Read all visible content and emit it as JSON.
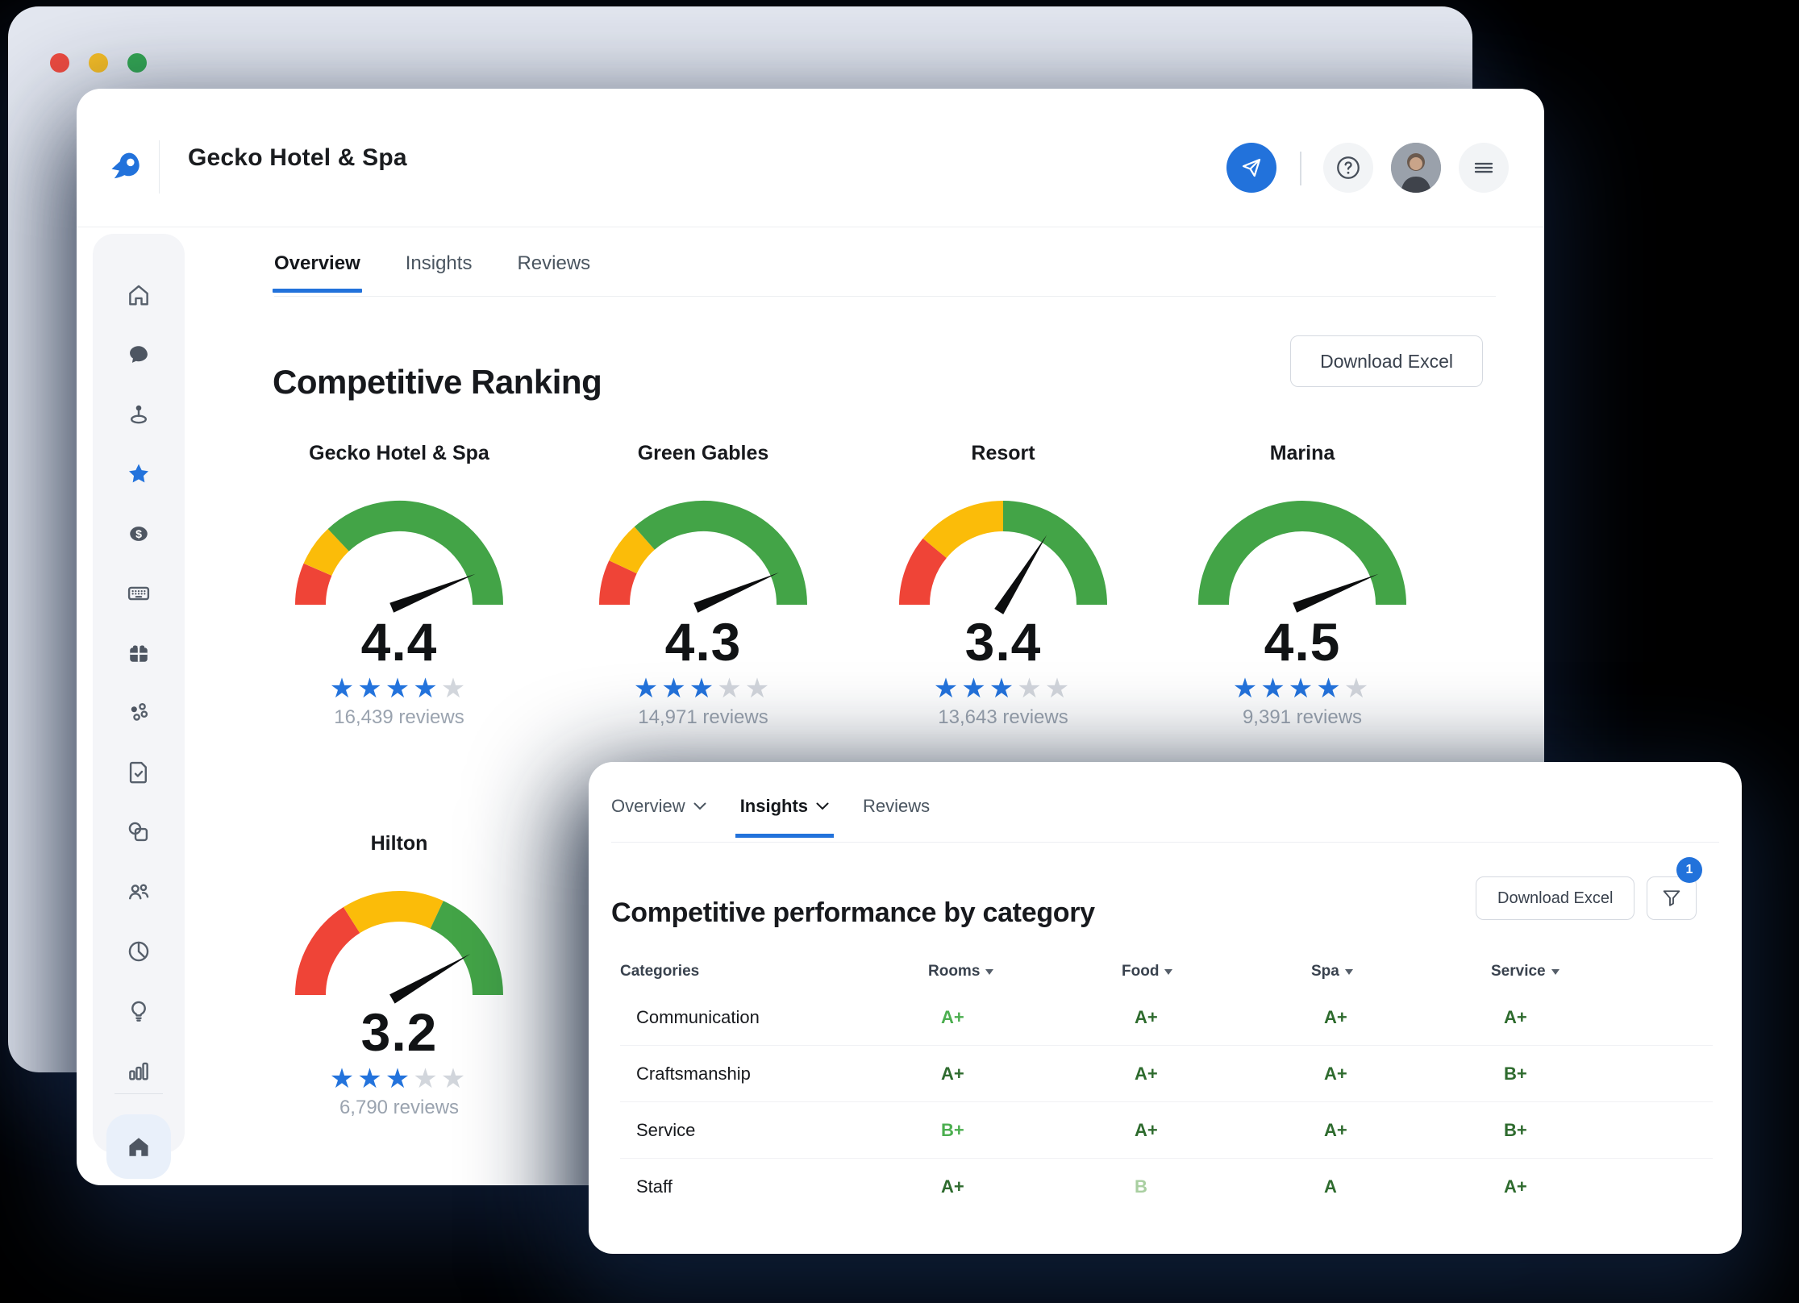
{
  "window": {
    "title": "Gecko Hotel & Spa",
    "traffic_lights": {
      "red": "#EE4B40",
      "yellow": "#F7BE25",
      "green": "#34A853"
    }
  },
  "main_tabs": [
    {
      "label": "Overview",
      "active": true
    },
    {
      "label": "Insights",
      "active": false
    },
    {
      "label": "Reviews",
      "active": false
    }
  ],
  "ranking": {
    "title": "Competitive Ranking",
    "download_button": "Download Excel",
    "gauges": [
      {
        "name": "Gecko Hotel & Spa",
        "value": "4.4",
        "stars": 4,
        "reviews": "16,439 reviews",
        "segments": {
          "red": 0.13,
          "yellow": 0.13,
          "green": 0.74
        },
        "needle_deg": 22
      },
      {
        "name": "Green Gables",
        "value": "4.3",
        "stars": 3,
        "reviews": "14,971 reviews",
        "segments": {
          "red": 0.14,
          "yellow": 0.13,
          "green": 0.73
        },
        "needle_deg": 23
      },
      {
        "name": "Resort",
        "value": "3.4",
        "stars": 3,
        "reviews": "13,643 reviews",
        "segments": {
          "red": 0.22,
          "yellow": 0.28,
          "green": 0.5
        },
        "needle_deg": 58
      },
      {
        "name": "Marina",
        "value": "4.5",
        "stars": 4,
        "reviews": "9,391 reviews",
        "segments": {
          "red": 0,
          "yellow": 0,
          "green": 1
        },
        "needle_deg": 22
      },
      {
        "name": "Hilton",
        "value": "3.2",
        "stars": 3,
        "reviews": "6,790 reviews",
        "segments": {
          "red": 0.32,
          "yellow": 0.32,
          "green": 0.36
        },
        "needle_deg": 30
      }
    ]
  },
  "panel": {
    "tabs": [
      {
        "label": "Overview",
        "chevron": true,
        "active": false
      },
      {
        "label": "Insights",
        "chevron": true,
        "active": true
      },
      {
        "label": "Reviews",
        "chevron": false,
        "active": false
      }
    ],
    "title": "Competitive performance by category",
    "download_button": "Download Excel",
    "filter_badge": "1",
    "table": {
      "columns": [
        "Categories",
        "Rooms",
        "Food",
        "Spa",
        "Service"
      ],
      "rows": [
        {
          "category": "Communication",
          "grades": [
            {
              "value": "A+",
              "tone": "bright"
            },
            {
              "value": "A+",
              "tone": "dark"
            },
            {
              "value": "A+",
              "tone": "dark"
            },
            {
              "value": "A+",
              "tone": "dark"
            }
          ]
        },
        {
          "category": "Craftsmanship",
          "grades": [
            {
              "value": "A+",
              "tone": "dark"
            },
            {
              "value": "A+",
              "tone": "dark"
            },
            {
              "value": "A+",
              "tone": "dark"
            },
            {
              "value": "B+",
              "tone": "dark"
            }
          ]
        },
        {
          "category": "Service",
          "grades": [
            {
              "value": "B+",
              "tone": "bright"
            },
            {
              "value": "A+",
              "tone": "dark"
            },
            {
              "value": "A+",
              "tone": "dark"
            },
            {
              "value": "B+",
              "tone": "dark"
            }
          ]
        },
        {
          "category": "Staff",
          "grades": [
            {
              "value": "A+",
              "tone": "dark"
            },
            {
              "value": "B",
              "tone": "pale"
            },
            {
              "value": "A",
              "tone": "dark"
            },
            {
              "value": "A+",
              "tone": "dark"
            }
          ]
        }
      ]
    }
  },
  "sidebar": {
    "items": [
      "home",
      "chat",
      "location-pin",
      "star",
      "dollar",
      "keyboard",
      "gift",
      "share",
      "document-check",
      "copy",
      "users",
      "pie-chart",
      "lightbulb",
      "bar-chart"
    ],
    "active_item": "star",
    "bottom_item": "home-filled"
  },
  "colors": {
    "accent_blue": "#2272DB",
    "gauge_red": "#EF4437",
    "gauge_yellow": "#FBBC09",
    "gauge_green": "#43A447",
    "star_filled": "#2373DC",
    "star_empty": "#D2D6DC",
    "grade_dark": "#2E6B2E",
    "grade_bright": "#4BAE4F",
    "grade_pale": "#A9CFA1"
  },
  "chart_data": [
    {
      "type": "gauge",
      "title": "Competitive Ranking",
      "categories": [
        "Gecko Hotel & Spa",
        "Green Gables",
        "Resort",
        "Marina",
        "Hilton"
      ],
      "values": [
        4.4,
        4.3,
        3.4,
        4.5,
        3.2
      ],
      "review_counts": [
        16439,
        14971,
        13643,
        9391,
        6790
      ],
      "star_ratings": [
        4,
        3,
        3,
        4,
        3
      ],
      "scale": [
        0,
        5
      ]
    },
    {
      "type": "table",
      "title": "Competitive performance by category",
      "columns": [
        "Categories",
        "Rooms",
        "Food",
        "Spa",
        "Service"
      ],
      "rows": [
        [
          "Communication",
          "A+",
          "A+",
          "A+",
          "A+"
        ],
        [
          "Craftsmanship",
          "A+",
          "A+",
          "A+",
          "B+"
        ],
        [
          "Service",
          "B+",
          "A+",
          "A+",
          "B+"
        ],
        [
          "Staff",
          "A+",
          "B",
          "A",
          "A+"
        ]
      ]
    }
  ]
}
